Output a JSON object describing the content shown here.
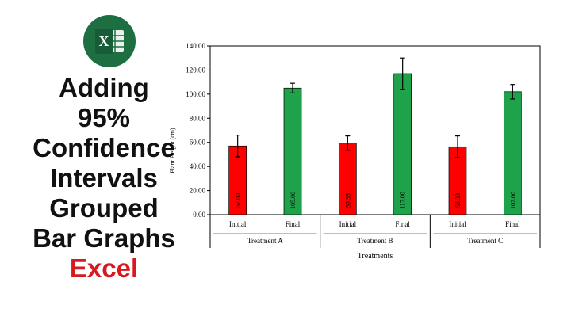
{
  "logo": {
    "letter": "X",
    "icon": "excel-icon",
    "color": "#1d6f42"
  },
  "title": {
    "lines": [
      "Adding",
      "95%",
      "Confidence",
      "Intervals",
      "Grouped",
      "Bar Graphs"
    ],
    "accent": "Excel",
    "accent_color": "#d71920"
  },
  "chart_data": {
    "type": "bar",
    "groups": [
      {
        "name": "Treatment A",
        "bars": [
          {
            "category": "Initial",
            "value": 57.0,
            "label": "57.00",
            "ci": 9,
            "color": "#ff0000"
          },
          {
            "category": "Final",
            "value": 105.0,
            "label": "105.00",
            "ci": 4,
            "color": "#1fa34a"
          }
        ]
      },
      {
        "name": "Treatment B",
        "bars": [
          {
            "category": "Initial",
            "value": 59.33,
            "label": "59.33",
            "ci": 6,
            "color": "#ff0000"
          },
          {
            "category": "Final",
            "value": 117.0,
            "label": "117.00",
            "ci": 13,
            "color": "#1fa34a"
          }
        ]
      },
      {
        "name": "Treatment C",
        "bars": [
          {
            "category": "Initial",
            "value": 56.33,
            "label": "56.33",
            "ci": 9,
            "color": "#ff0000"
          },
          {
            "category": "Final",
            "value": 102.0,
            "label": "102.00",
            "ci": 6,
            "color": "#1fa34a"
          }
        ]
      }
    ],
    "xlabel": "Treatments",
    "ylabel": "Plant Height (cm)",
    "ylim": [
      0,
      140
    ],
    "yticks": [
      "0.00",
      "20.00",
      "40.00",
      "60.00",
      "80.00",
      "100.00",
      "120.00",
      "140.00"
    ],
    "grid": false
  }
}
